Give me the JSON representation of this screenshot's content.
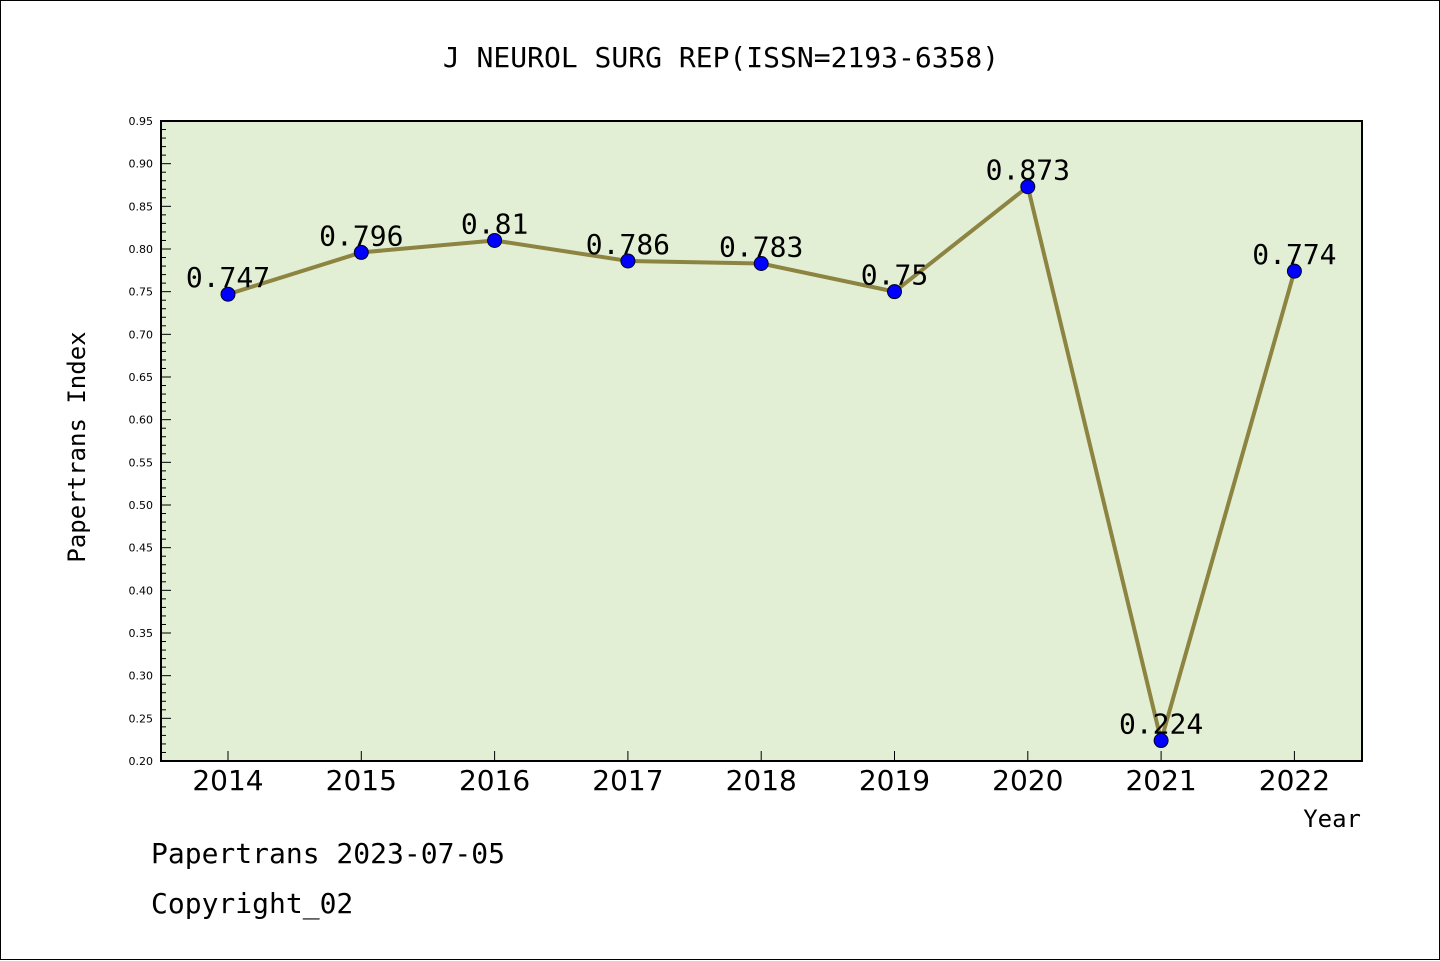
{
  "chart_data": {
    "type": "line",
    "title": "J NEUROL SURG REP(ISSN=2193-6358)",
    "xlabel": "Year",
    "ylabel": "Papertrans Index",
    "categories": [
      "2014",
      "2015",
      "2016",
      "2017",
      "2018",
      "2019",
      "2020",
      "2021",
      "2022"
    ],
    "series": [
      {
        "values": [
          0.747,
          0.796,
          0.81,
          0.786,
          0.783,
          0.75,
          0.873,
          0.224,
          0.774
        ],
        "data_labels": [
          "0.747",
          "0.796",
          "0.81",
          "0.786",
          "0.783",
          "0.75",
          "0.873",
          "0.224",
          "0.774"
        ]
      }
    ],
    "ylim": [
      0.2,
      0.95
    ],
    "yticks": [
      "0.20",
      "0.25",
      "0.30",
      "0.35",
      "0.40",
      "0.45",
      "0.50",
      "0.55",
      "0.60",
      "0.65",
      "0.70",
      "0.75",
      "0.80",
      "0.85",
      "0.90",
      "0.95"
    ],
    "grid": false,
    "colors": {
      "plot_background": "#e2efd5",
      "line": "#8c8440",
      "marker": "#0000ff"
    }
  },
  "footer": {
    "date_line": "Papertrans 2023-07-05",
    "copyright": "Copyright_02"
  }
}
